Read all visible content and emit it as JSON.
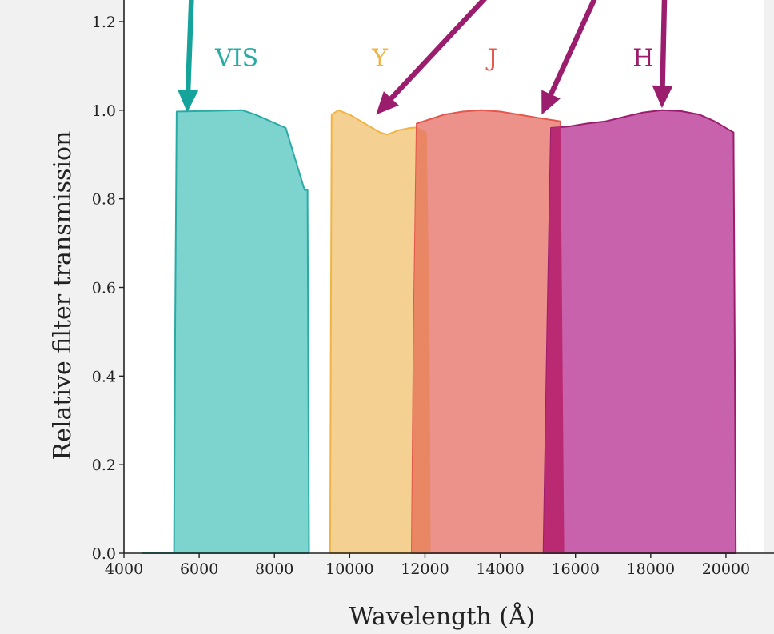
{
  "chart_data": {
    "type": "area",
    "xlabel": "Wavelength (Å)",
    "ylabel": "Relative filter transmission",
    "xlim": [
      4000,
      21000
    ],
    "ylim": [
      0,
      1.2
    ],
    "xticks": [
      4000,
      6000,
      8000,
      10000,
      12000,
      14000,
      16000,
      18000,
      20000
    ],
    "yticks": [
      0.0,
      0.2,
      0.4,
      0.6,
      0.8,
      1.0,
      1.2
    ],
    "xtick_labels": [
      "4000",
      "6000",
      "8000",
      "10000",
      "12000",
      "14000",
      "16000",
      "18000",
      "20000"
    ],
    "ytick_labels": [
      "0.0",
      "0.2",
      "0.4",
      "0.6",
      "0.8",
      "1.0",
      "1.2"
    ],
    "grid": false,
    "series": [
      {
        "name": "VIS",
        "label": "VIS",
        "label_at": [
          7000,
          1.12
        ],
        "fill": "#7dd4cf",
        "stroke": "#2aaaa5",
        "points": [
          [
            4500,
            0.0
          ],
          [
            5330,
            0.002
          ],
          [
            5360,
            0.5
          ],
          [
            5400,
            0.997
          ],
          [
            7150,
            1.0
          ],
          [
            7500,
            0.99
          ],
          [
            8300,
            0.96
          ],
          [
            8800,
            0.82
          ],
          [
            8880,
            0.82
          ],
          [
            8920,
            0.0
          ]
        ]
      },
      {
        "name": "Y",
        "label": "Y",
        "label_at": [
          10800,
          1.12
        ],
        "fill": "#f4d192",
        "stroke": "#f0b445",
        "points": [
          [
            9480,
            0.0
          ],
          [
            9500,
            0.5
          ],
          [
            9520,
            0.99
          ],
          [
            9700,
            1.0
          ],
          [
            10000,
            0.99
          ],
          [
            10300,
            0.975
          ],
          [
            10600,
            0.96
          ],
          [
            10800,
            0.95
          ],
          [
            11000,
            0.945
          ],
          [
            11300,
            0.955
          ],
          [
            11600,
            0.96
          ],
          [
            11900,
            0.962
          ],
          [
            12050,
            0.95
          ],
          [
            12120,
            0.5
          ],
          [
            12150,
            0.0
          ]
        ]
      },
      {
        "name": "J",
        "label": "J",
        "label_at": [
          13800,
          1.12
        ],
        "fill": "#ed928b",
        "stroke": "#e4574c",
        "points": [
          [
            11650,
            0.0
          ],
          [
            11700,
            0.5
          ],
          [
            11780,
            0.97
          ],
          [
            12500,
            0.99
          ],
          [
            13000,
            0.997
          ],
          [
            13500,
            1.0
          ],
          [
            14000,
            0.997
          ],
          [
            14500,
            0.99
          ],
          [
            15000,
            0.983
          ],
          [
            15600,
            0.975
          ],
          [
            15650,
            0.5
          ],
          [
            15700,
            0.0
          ]
        ]
      },
      {
        "name": "H",
        "label": "H",
        "label_at": [
          17800,
          1.12
        ],
        "fill": "#c962ad",
        "stroke": "#9b1e6e",
        "points": [
          [
            15150,
            0.0
          ],
          [
            15250,
            0.5
          ],
          [
            15350,
            0.96
          ],
          [
            15800,
            0.963
          ],
          [
            16300,
            0.97
          ],
          [
            16800,
            0.975
          ],
          [
            17300,
            0.985
          ],
          [
            17800,
            0.995
          ],
          [
            18300,
            1.0
          ],
          [
            18800,
            0.998
          ],
          [
            19300,
            0.99
          ],
          [
            19700,
            0.975
          ],
          [
            20100,
            0.955
          ],
          [
            20200,
            0.95
          ],
          [
            20230,
            0.5
          ],
          [
            20260,
            0.0
          ]
        ]
      }
    ],
    "overlaps": [
      {
        "between": [
          "Y",
          "J"
        ],
        "fill": "#e98664",
        "points": [
          [
            11650,
            0.0
          ],
          [
            11700,
            0.5
          ],
          [
            11780,
            0.963
          ],
          [
            12050,
            0.95
          ],
          [
            12120,
            0.5
          ],
          [
            12150,
            0.0
          ]
        ]
      },
      {
        "between": [
          "J",
          "H"
        ],
        "fill": "#b92a72",
        "points": [
          [
            15150,
            0.0
          ],
          [
            15250,
            0.5
          ],
          [
            15350,
            0.96
          ],
          [
            15600,
            0.963
          ],
          [
            15650,
            0.5
          ],
          [
            15700,
            0.0
          ]
        ]
      }
    ],
    "arrows": [
      {
        "target": "VIS",
        "color": "#15a39c",
        "from": [
          5850,
          1.38
        ],
        "to": [
          5680,
          0.995
        ]
      },
      {
        "target": "Y",
        "color": "#9b1e6e",
        "from": [
          15000,
          1.38
        ],
        "to": [
          10700,
          0.99
        ]
      },
      {
        "target": "J",
        "color": "#9b1e6e",
        "from": [
          17200,
          1.38
        ],
        "to": [
          15100,
          0.99
        ]
      },
      {
        "target": "H",
        "color": "#9b1e6e",
        "from": [
          18400,
          1.38
        ],
        "to": [
          18300,
          1.005
        ]
      }
    ]
  }
}
